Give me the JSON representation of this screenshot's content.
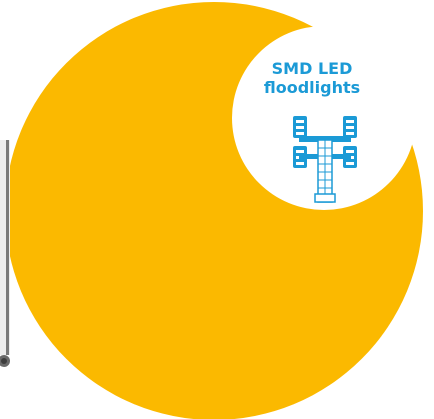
{
  "badge": {
    "line1": "SMD LED",
    "line2": "floodlights",
    "icon": "floodlight-mast-icon"
  },
  "colors": {
    "crescent": "#fbb900",
    "accent": "#1b9ad6",
    "background": "#ffffff",
    "edge_object": "#5a5a5a"
  }
}
